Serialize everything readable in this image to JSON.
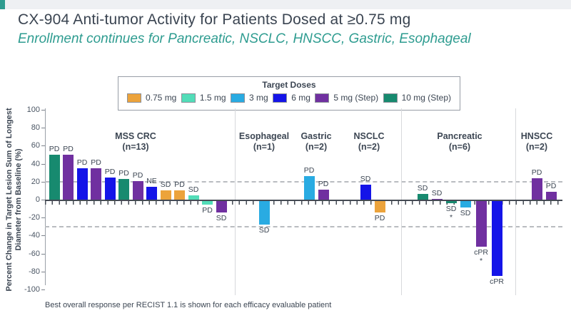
{
  "header": {
    "title": "CX-904 Anti-tumor Activity for Patients Dosed at ≥0.75 mg",
    "subtitle": "Enrollment continues for Pancreatic, NSCLC, HNSCC, Gastric, Esophageal"
  },
  "legend": {
    "title": "Target Doses",
    "items": [
      {
        "label": "0.75 mg",
        "color": "#eca33b"
      },
      {
        "label": "1.5 mg",
        "color": "#52ddb8"
      },
      {
        "label": "3 mg",
        "color": "#29abe2"
      },
      {
        "label": "6 mg",
        "color": "#1414e8"
      },
      {
        "label": "5 mg (Step)",
        "color": "#7030a0"
      },
      {
        "label": "10 mg (Step)",
        "color": "#178a6f"
      }
    ]
  },
  "chart_data": {
    "type": "bar",
    "title": "",
    "ylabel_line1": "Percent Change in Target Lesion Sum of Longest",
    "ylabel_line2": "Diameter from Baseline (%)",
    "ylim": [
      -100,
      100
    ],
    "yticks": [
      100,
      80,
      60,
      40,
      20,
      0,
      -20,
      -40,
      -60,
      -80,
      -100
    ],
    "reference_lines": [
      20,
      -30
    ],
    "grid": "dashed-thresholds-only",
    "legend_position": "top",
    "groups": [
      {
        "name": "MSS CRC",
        "n": "(n=13)",
        "bars": [
          {
            "v": 50,
            "dose": "10 mg (Step)",
            "label": "PD"
          },
          {
            "v": 50,
            "dose": "5 mg (Step)",
            "label": "PD"
          },
          {
            "v": 35,
            "dose": "6 mg",
            "label": "PD"
          },
          {
            "v": 35,
            "dose": "5 mg (Step)",
            "label": "PD"
          },
          {
            "v": 25,
            "dose": "6 mg",
            "label": "PD"
          },
          {
            "v": 23,
            "dose": "10 mg (Step)",
            "label": "PD"
          },
          {
            "v": 21,
            "dose": "5 mg (Step)",
            "label": "PD"
          },
          {
            "v": 14,
            "dose": "6 mg",
            "label": "NE"
          },
          {
            "v": 10,
            "dose": "0.75 mg",
            "label": "SD"
          },
          {
            "v": 10,
            "dose": "0.75 mg",
            "label": "PD"
          },
          {
            "v": 5,
            "dose": "1.5 mg",
            "label": "SD"
          },
          {
            "v": -4,
            "dose": "1.5 mg",
            "label": "PD"
          },
          {
            "v": -13,
            "dose": "5 mg (Step)",
            "label": "SD"
          }
        ]
      },
      {
        "name": "Esophageal",
        "n": "(n=1)",
        "bars": [
          {
            "v": -26,
            "dose": "3 mg",
            "label": "SD"
          }
        ]
      },
      {
        "name": "Gastric",
        "n": "(n=2)",
        "bars": [
          {
            "v": 26,
            "dose": "3 mg",
            "label": "PD"
          },
          {
            "v": 11,
            "dose": "5 mg (Step)",
            "label": "PD"
          }
        ]
      },
      {
        "name": "NSCLC",
        "n": "(n=2)",
        "bars": [
          {
            "v": 17,
            "dose": "6 mg",
            "label": "SD"
          },
          {
            "v": -13,
            "dose": "0.75 mg",
            "label": "PD"
          }
        ]
      },
      {
        "name": "Pancreatic",
        "n": "(n=6)",
        "bars": [
          {
            "v": 6,
            "dose": "10 mg (Step)",
            "label": "SD"
          },
          {
            "v": 1,
            "dose": "5 mg (Step)",
            "label": "SD"
          },
          {
            "v": -2,
            "dose": "10 mg (Step)",
            "label": "SD",
            "star": true
          },
          {
            "v": -7,
            "dose": "3 mg",
            "label": "SD"
          },
          {
            "v": -51,
            "dose": "5 mg (Step)",
            "label": "cPR",
            "star": true
          },
          {
            "v": -83,
            "dose": "6 mg",
            "label": "cPR"
          }
        ]
      },
      {
        "name": "HNSCC",
        "n": "(n=2)",
        "bars": [
          {
            "v": 24,
            "dose": "5 mg (Step)",
            "label": "PD"
          },
          {
            "v": 9,
            "dose": "5 mg (Step)",
            "label": "PD"
          }
        ]
      }
    ]
  },
  "footnote": "Best overall response per RECIST 1.1 is shown for each efficacy evaluable patient"
}
